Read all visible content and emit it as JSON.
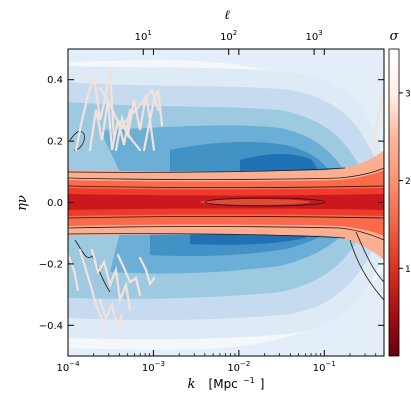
{
  "chart_data": {
    "type": "heatmap",
    "subtype": "filled-contour",
    "xlabel_main": "k",
    "xlabel_unit": "[Mpc",
    "xlabel_unit_exp": "−1",
    "xlabel_unit_close": "]",
    "ylabel": "ην",
    "top_axis_label": "ℓ",
    "colorbar_label": "σ",
    "x_scale": "log",
    "xlim": [
      0.0001,
      0.5
    ],
    "ylim": [
      -0.5,
      0.5
    ],
    "x_ticks": [
      {
        "value": 0.0001,
        "base": "10",
        "exp": "−4"
      },
      {
        "value": 0.001,
        "base": "10",
        "exp": "−3"
      },
      {
        "value": 0.01,
        "base": "10",
        "exp": "−2"
      },
      {
        "value": 0.1,
        "base": "10",
        "exp": "−1"
      }
    ],
    "top_ticks": [
      {
        "value": 10,
        "base": "10",
        "exp": "1"
      },
      {
        "value": 100,
        "base": "10",
        "exp": "2"
      },
      {
        "value": 1000,
        "base": "10",
        "exp": "3"
      }
    ],
    "top_ticks_k_position": [
      0.00076,
      0.0076,
      0.076
    ],
    "y_ticks": [
      {
        "value": 0.4,
        "label": "0.4"
      },
      {
        "value": 0.2,
        "label": "0.2"
      },
      {
        "value": 0.0,
        "label": "0.0"
      },
      {
        "value": -0.2,
        "label": "−0.2"
      },
      {
        "value": -0.4,
        "label": "−0.4"
      }
    ],
    "colorbar": {
      "range": [
        0,
        3.5
      ],
      "ticks": [
        {
          "value": 1,
          "label": "1"
        },
        {
          "value": 2,
          "label": "2"
        },
        {
          "value": 3,
          "label": "3"
        }
      ],
      "colors_low_to_high": [
        "#67000d",
        "#a50f15",
        "#d7301f",
        "#ef6548",
        "#fc9272",
        "#fcbba1",
        "#fff5f0",
        "#ffffff"
      ]
    },
    "contour_colors": {
      "red_core": "#cb181d",
      "red_mid": "#ef3b2c",
      "red_light": "#fb6a4a",
      "pink": "#fcae91",
      "blue_levels": [
        "#f1f5fb",
        "#deebf7",
        "#c6dbef",
        "#9ecae1",
        "#6baed6",
        "#4292c6",
        "#2171b5"
      ],
      "noise": "#f2e2dc"
    }
  }
}
